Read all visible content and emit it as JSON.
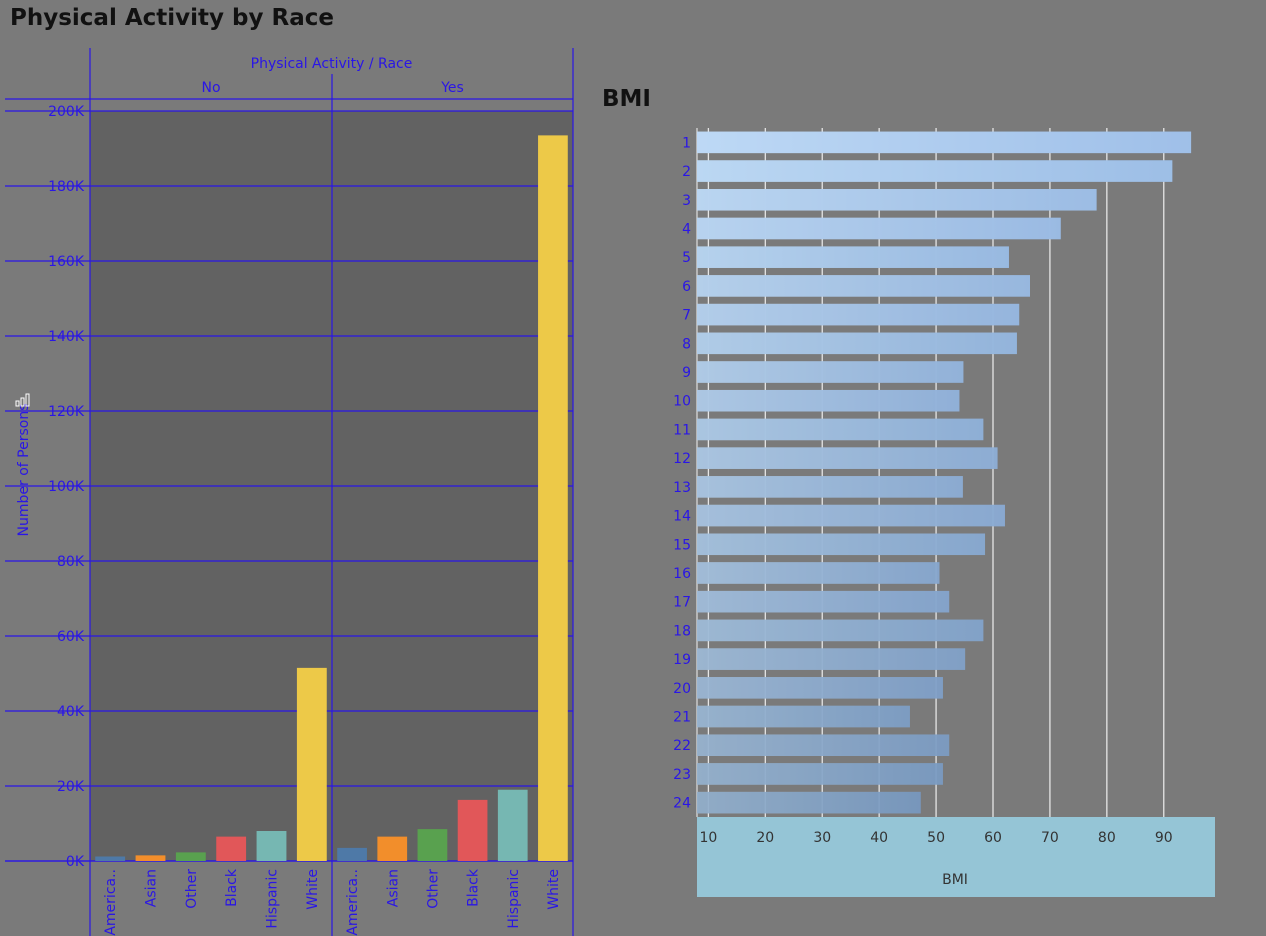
{
  "titles": {
    "dashboard": "Physical Activity by Race",
    "bmi": "BMI"
  },
  "colors": {
    "background": "#7a7a7a",
    "plot_background": "#626262",
    "axis_lines": "#2a16e6",
    "bmi_axis_band": "#95c5d6"
  },
  "chart_data": [
    {
      "type": "bar",
      "title": "Physical Activity by Race",
      "column_header": "Physical Activity / Race",
      "ylabel": "Number of Persons",
      "ylim": [
        0,
        200000
      ],
      "yticks": [
        0,
        20000,
        40000,
        60000,
        80000,
        100000,
        120000,
        140000,
        160000,
        180000,
        200000
      ],
      "ytick_labels": [
        "0K",
        "20K",
        "40K",
        "60K",
        "80K",
        "100K",
        "120K",
        "140K",
        "160K",
        "180K",
        "200K"
      ],
      "grid": true,
      "categories": [
        "America..",
        "Asian",
        "Other",
        "Black",
        "Hispanic",
        "White"
      ],
      "category_colors": [
        "#4e79a7",
        "#f28e2b",
        "#59a14f",
        "#e15759",
        "#76b7b2",
        "#edc948"
      ],
      "panes": [
        {
          "label": "No",
          "values": [
            1200,
            1500,
            2300,
            6500,
            8000,
            51500
          ]
        },
        {
          "label": "Yes",
          "values": [
            3500,
            6500,
            8500,
            16300,
            19000,
            193500
          ]
        }
      ]
    },
    {
      "type": "bar",
      "orientation": "horizontal",
      "title": "BMI",
      "xlabel": "BMI",
      "xlim": [
        8,
        99
      ],
      "xticks": [
        10,
        20,
        30,
        40,
        50,
        60,
        70,
        80,
        90
      ],
      "grid": true,
      "categories": [
        "1",
        "2",
        "3",
        "4",
        "5",
        "6",
        "7",
        "8",
        "9",
        "10",
        "11",
        "12",
        "13",
        "14",
        "15",
        "16",
        "17",
        "18",
        "19",
        "20",
        "21",
        "22",
        "23",
        "24"
      ],
      "values": [
        94.8,
        91.5,
        78.2,
        71.9,
        62.8,
        66.5,
        64.6,
        64.2,
        54.8,
        54.1,
        58.3,
        60.8,
        54.7,
        62.1,
        58.6,
        50.6,
        52.3,
        58.3,
        55.1,
        51.2,
        45.4,
        52.3,
        51.2,
        47.3
      ]
    }
  ]
}
